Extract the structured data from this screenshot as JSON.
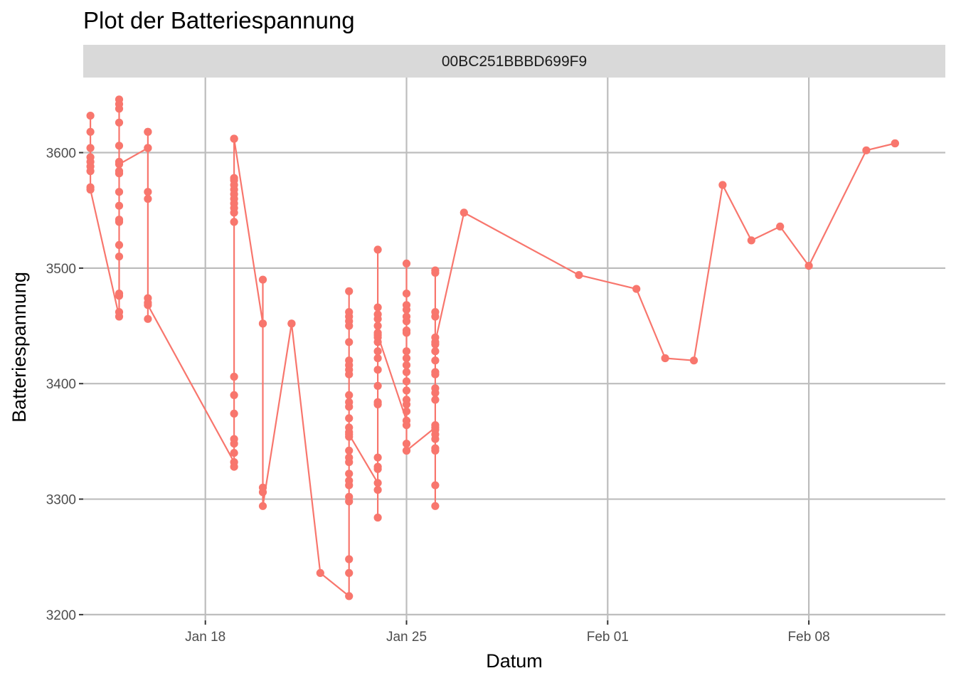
{
  "chart_data": {
    "type": "line",
    "title": "Plot der Batteriespannung",
    "facet_label": "00BC251BBBD699F9",
    "xlabel": "Datum",
    "ylabel": "Batteriespannung",
    "x_ticks": [
      {
        "date": "2022-01-18",
        "label": "Jan 18"
      },
      {
        "date": "2022-01-25",
        "label": "Jan 25"
      },
      {
        "date": "2022-02-01",
        "label": "Feb 01"
      },
      {
        "date": "2022-02-08",
        "label": "Feb 08"
      }
    ],
    "y_ticks": [
      3200,
      3300,
      3400,
      3500,
      3600
    ],
    "xlim": [
      "2022-01-13T18:00",
      "2022-02-12T18:00"
    ],
    "ylim": [
      3195,
      3665
    ],
    "grid": true,
    "legend": "none",
    "series": [
      {
        "color": "#F8766D",
        "points": [
          {
            "x": "2022-01-14",
            "y": 3632
          },
          {
            "x": "2022-01-14",
            "y": 3618
          },
          {
            "x": "2022-01-14",
            "y": 3604
          },
          {
            "x": "2022-01-14",
            "y": 3596
          },
          {
            "x": "2022-01-14",
            "y": 3592
          },
          {
            "x": "2022-01-14",
            "y": 3588
          },
          {
            "x": "2022-01-14",
            "y": 3584
          },
          {
            "x": "2022-01-14",
            "y": 3570
          },
          {
            "x": "2022-01-14",
            "y": 3568
          },
          {
            "x": "2022-01-15",
            "y": 3458
          },
          {
            "x": "2022-01-15",
            "y": 3462
          },
          {
            "x": "2022-01-15",
            "y": 3476
          },
          {
            "x": "2022-01-15",
            "y": 3478
          },
          {
            "x": "2022-01-15",
            "y": 3510
          },
          {
            "x": "2022-01-15",
            "y": 3520
          },
          {
            "x": "2022-01-15",
            "y": 3540
          },
          {
            "x": "2022-01-15",
            "y": 3542
          },
          {
            "x": "2022-01-15",
            "y": 3554
          },
          {
            "x": "2022-01-15",
            "y": 3566
          },
          {
            "x": "2022-01-15",
            "y": 3582
          },
          {
            "x": "2022-01-15",
            "y": 3584
          },
          {
            "x": "2022-01-15",
            "y": 3606
          },
          {
            "x": "2022-01-15",
            "y": 3626
          },
          {
            "x": "2022-01-15",
            "y": 3638
          },
          {
            "x": "2022-01-15",
            "y": 3642
          },
          {
            "x": "2022-01-15",
            "y": 3646
          },
          {
            "x": "2022-01-15",
            "y": 3592
          },
          {
            "x": "2022-01-15",
            "y": 3590
          },
          {
            "x": "2022-01-16",
            "y": 3604
          },
          {
            "x": "2022-01-16",
            "y": 3618
          },
          {
            "x": "2022-01-16",
            "y": 3618
          },
          {
            "x": "2022-01-16",
            "y": 3604
          },
          {
            "x": "2022-01-16",
            "y": 3566
          },
          {
            "x": "2022-01-16",
            "y": 3560
          },
          {
            "x": "2022-01-16",
            "y": 3474
          },
          {
            "x": "2022-01-16",
            "y": 3470
          },
          {
            "x": "2022-01-16",
            "y": 3456
          },
          {
            "x": "2022-01-16",
            "y": 3468
          },
          {
            "x": "2022-01-19",
            "y": 3332
          },
          {
            "x": "2022-01-19",
            "y": 3328
          },
          {
            "x": "2022-01-19",
            "y": 3340
          },
          {
            "x": "2022-01-19",
            "y": 3348
          },
          {
            "x": "2022-01-19",
            "y": 3352
          },
          {
            "x": "2022-01-19",
            "y": 3374
          },
          {
            "x": "2022-01-19",
            "y": 3390
          },
          {
            "x": "2022-01-19",
            "y": 3406
          },
          {
            "x": "2022-01-19",
            "y": 3540
          },
          {
            "x": "2022-01-19",
            "y": 3548
          },
          {
            "x": "2022-01-19",
            "y": 3552
          },
          {
            "x": "2022-01-19",
            "y": 3556
          },
          {
            "x": "2022-01-19",
            "y": 3560
          },
          {
            "x": "2022-01-19",
            "y": 3564
          },
          {
            "x": "2022-01-19",
            "y": 3568
          },
          {
            "x": "2022-01-19",
            "y": 3572
          },
          {
            "x": "2022-01-19",
            "y": 3576
          },
          {
            "x": "2022-01-19",
            "y": 3578
          },
          {
            "x": "2022-01-19",
            "y": 3612
          },
          {
            "x": "2022-01-19",
            "y": 3612
          },
          {
            "x": "2022-01-20",
            "y": 3452
          },
          {
            "x": "2022-01-20",
            "y": 3490
          },
          {
            "x": "2022-01-20",
            "y": 3452
          },
          {
            "x": "2022-01-20",
            "y": 3310
          },
          {
            "x": "2022-01-20",
            "y": 3306
          },
          {
            "x": "2022-01-20",
            "y": 3294
          },
          {
            "x": "2022-01-21",
            "y": 3452
          },
          {
            "x": "2022-01-21",
            "y": 3452
          },
          {
            "x": "2022-01-22",
            "y": 3236
          },
          {
            "x": "2022-01-23",
            "y": 3216
          },
          {
            "x": "2022-01-23",
            "y": 3236
          },
          {
            "x": "2022-01-23",
            "y": 3248
          },
          {
            "x": "2022-01-23",
            "y": 3298
          },
          {
            "x": "2022-01-23",
            "y": 3302
          },
          {
            "x": "2022-01-23",
            "y": 3312
          },
          {
            "x": "2022-01-23",
            "y": 3316
          },
          {
            "x": "2022-01-23",
            "y": 3322
          },
          {
            "x": "2022-01-23",
            "y": 3332
          },
          {
            "x": "2022-01-23",
            "y": 3336
          },
          {
            "x": "2022-01-23",
            "y": 3342
          },
          {
            "x": "2022-01-23",
            "y": 3354
          },
          {
            "x": "2022-01-23",
            "y": 3358
          },
          {
            "x": "2022-01-23",
            "y": 3362
          },
          {
            "x": "2022-01-23",
            "y": 3370
          },
          {
            "x": "2022-01-23",
            "y": 3380
          },
          {
            "x": "2022-01-23",
            "y": 3384
          },
          {
            "x": "2022-01-23",
            "y": 3390
          },
          {
            "x": "2022-01-23",
            "y": 3408
          },
          {
            "x": "2022-01-23",
            "y": 3412
          },
          {
            "x": "2022-01-23",
            "y": 3416
          },
          {
            "x": "2022-01-23",
            "y": 3420
          },
          {
            "x": "2022-01-23",
            "y": 3436
          },
          {
            "x": "2022-01-23",
            "y": 3450
          },
          {
            "x": "2022-01-23",
            "y": 3454
          },
          {
            "x": "2022-01-23",
            "y": 3458
          },
          {
            "x": "2022-01-23",
            "y": 3462
          },
          {
            "x": "2022-01-23",
            "y": 3480
          },
          {
            "x": "2022-01-23",
            "y": 3356
          },
          {
            "x": "2022-01-24",
            "y": 3314
          },
          {
            "x": "2022-01-24",
            "y": 3308
          },
          {
            "x": "2022-01-24",
            "y": 3284
          },
          {
            "x": "2022-01-24",
            "y": 3326
          },
          {
            "x": "2022-01-24",
            "y": 3328
          },
          {
            "x": "2022-01-24",
            "y": 3336
          },
          {
            "x": "2022-01-24",
            "y": 3382
          },
          {
            "x": "2022-01-24",
            "y": 3384
          },
          {
            "x": "2022-01-24",
            "y": 3398
          },
          {
            "x": "2022-01-24",
            "y": 3412
          },
          {
            "x": "2022-01-24",
            "y": 3422
          },
          {
            "x": "2022-01-24",
            "y": 3428
          },
          {
            "x": "2022-01-24",
            "y": 3436
          },
          {
            "x": "2022-01-24",
            "y": 3440
          },
          {
            "x": "2022-01-24",
            "y": 3444
          },
          {
            "x": "2022-01-24",
            "y": 3450
          },
          {
            "x": "2022-01-24",
            "y": 3456
          },
          {
            "x": "2022-01-24",
            "y": 3460
          },
          {
            "x": "2022-01-24",
            "y": 3466
          },
          {
            "x": "2022-01-24",
            "y": 3516
          },
          {
            "x": "2022-01-24",
            "y": 3442
          },
          {
            "x": "2022-01-25",
            "y": 3368
          },
          {
            "x": "2022-01-25",
            "y": 3364
          },
          {
            "x": "2022-01-25",
            "y": 3342
          },
          {
            "x": "2022-01-25",
            "y": 3348
          },
          {
            "x": "2022-01-25",
            "y": 3376
          },
          {
            "x": "2022-01-25",
            "y": 3382
          },
          {
            "x": "2022-01-25",
            "y": 3386
          },
          {
            "x": "2022-01-25",
            "y": 3394
          },
          {
            "x": "2022-01-25",
            "y": 3402
          },
          {
            "x": "2022-01-25",
            "y": 3410
          },
          {
            "x": "2022-01-25",
            "y": 3416
          },
          {
            "x": "2022-01-25",
            "y": 3422
          },
          {
            "x": "2022-01-25",
            "y": 3428
          },
          {
            "x": "2022-01-25",
            "y": 3444
          },
          {
            "x": "2022-01-25",
            "y": 3446
          },
          {
            "x": "2022-01-25",
            "y": 3454
          },
          {
            "x": "2022-01-25",
            "y": 3458
          },
          {
            "x": "2022-01-25",
            "y": 3464
          },
          {
            "x": "2022-01-25",
            "y": 3468
          },
          {
            "x": "2022-01-25",
            "y": 3478
          },
          {
            "x": "2022-01-25",
            "y": 3504
          },
          {
            "x": "2022-01-25",
            "y": 3342
          },
          {
            "x": "2022-01-26",
            "y": 3362
          },
          {
            "x": "2022-01-26",
            "y": 3294
          },
          {
            "x": "2022-01-26",
            "y": 3312
          },
          {
            "x": "2022-01-26",
            "y": 3342
          },
          {
            "x": "2022-01-26",
            "y": 3344
          },
          {
            "x": "2022-01-26",
            "y": 3352
          },
          {
            "x": "2022-01-26",
            "y": 3356
          },
          {
            "x": "2022-01-26",
            "y": 3360
          },
          {
            "x": "2022-01-26",
            "y": 3364
          },
          {
            "x": "2022-01-26",
            "y": 3386
          },
          {
            "x": "2022-01-26",
            "y": 3392
          },
          {
            "x": "2022-01-26",
            "y": 3396
          },
          {
            "x": "2022-01-26",
            "y": 3408
          },
          {
            "x": "2022-01-26",
            "y": 3410
          },
          {
            "x": "2022-01-26",
            "y": 3420
          },
          {
            "x": "2022-01-26",
            "y": 3428
          },
          {
            "x": "2022-01-26",
            "y": 3434
          },
          {
            "x": "2022-01-26",
            "y": 3440
          },
          {
            "x": "2022-01-26",
            "y": 3458
          },
          {
            "x": "2022-01-26",
            "y": 3462
          },
          {
            "x": "2022-01-26",
            "y": 3496
          },
          {
            "x": "2022-01-26",
            "y": 3498
          },
          {
            "x": "2022-01-26",
            "y": 3436
          },
          {
            "x": "2022-01-27",
            "y": 3548
          },
          {
            "x": "2022-01-31",
            "y": 3494
          },
          {
            "x": "2022-02-02",
            "y": 3482
          },
          {
            "x": "2022-02-03",
            "y": 3422
          },
          {
            "x": "2022-02-04",
            "y": 3420
          },
          {
            "x": "2022-02-05",
            "y": 3572
          },
          {
            "x": "2022-02-06",
            "y": 3524
          },
          {
            "x": "2022-02-07",
            "y": 3536
          },
          {
            "x": "2022-02-08",
            "y": 3502
          },
          {
            "x": "2022-02-10",
            "y": 3602
          },
          {
            "x": "2022-02-11",
            "y": 3608
          },
          {
            "x": "2022-02-11",
            "y": 3608
          }
        ]
      }
    ]
  }
}
